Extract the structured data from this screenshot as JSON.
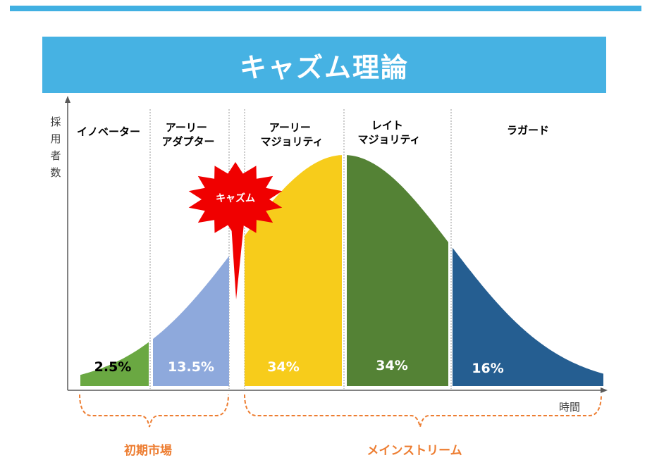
{
  "title": "キャズム理論",
  "y_axis_label": "採用者数",
  "x_axis_label": "時間",
  "chasm_label": "キャズム",
  "colors": {
    "banner": "#46b2e3",
    "innovators": "#6aa842",
    "early_adopters": "#8ea9dc",
    "early_majority": "#f7cc1b",
    "late_majority": "#548235",
    "laggards": "#255e91",
    "chasm": "#f00000",
    "bracket": "#ed7d31"
  },
  "segments": [
    {
      "name": "イノベーター",
      "lines": [
        "イノベーター"
      ],
      "percent": "2.5%"
    },
    {
      "name": "アーリーアダプター",
      "lines": [
        "アーリー",
        "アダプター"
      ],
      "percent": "13.5%"
    },
    {
      "name": "アーリーマジョリティ",
      "lines": [
        "アーリー",
        "マジョリティ"
      ],
      "percent": "34%"
    },
    {
      "name": "レイトマジョリティ",
      "lines": [
        "レイト",
        "マジョリティ"
      ],
      "percent": "34%"
    },
    {
      "name": "ラガード",
      "lines": [
        "ラガード"
      ],
      "percent": "16%"
    }
  ],
  "brackets": {
    "early_market": "初期市場",
    "mainstream": "メインストリーム"
  }
}
